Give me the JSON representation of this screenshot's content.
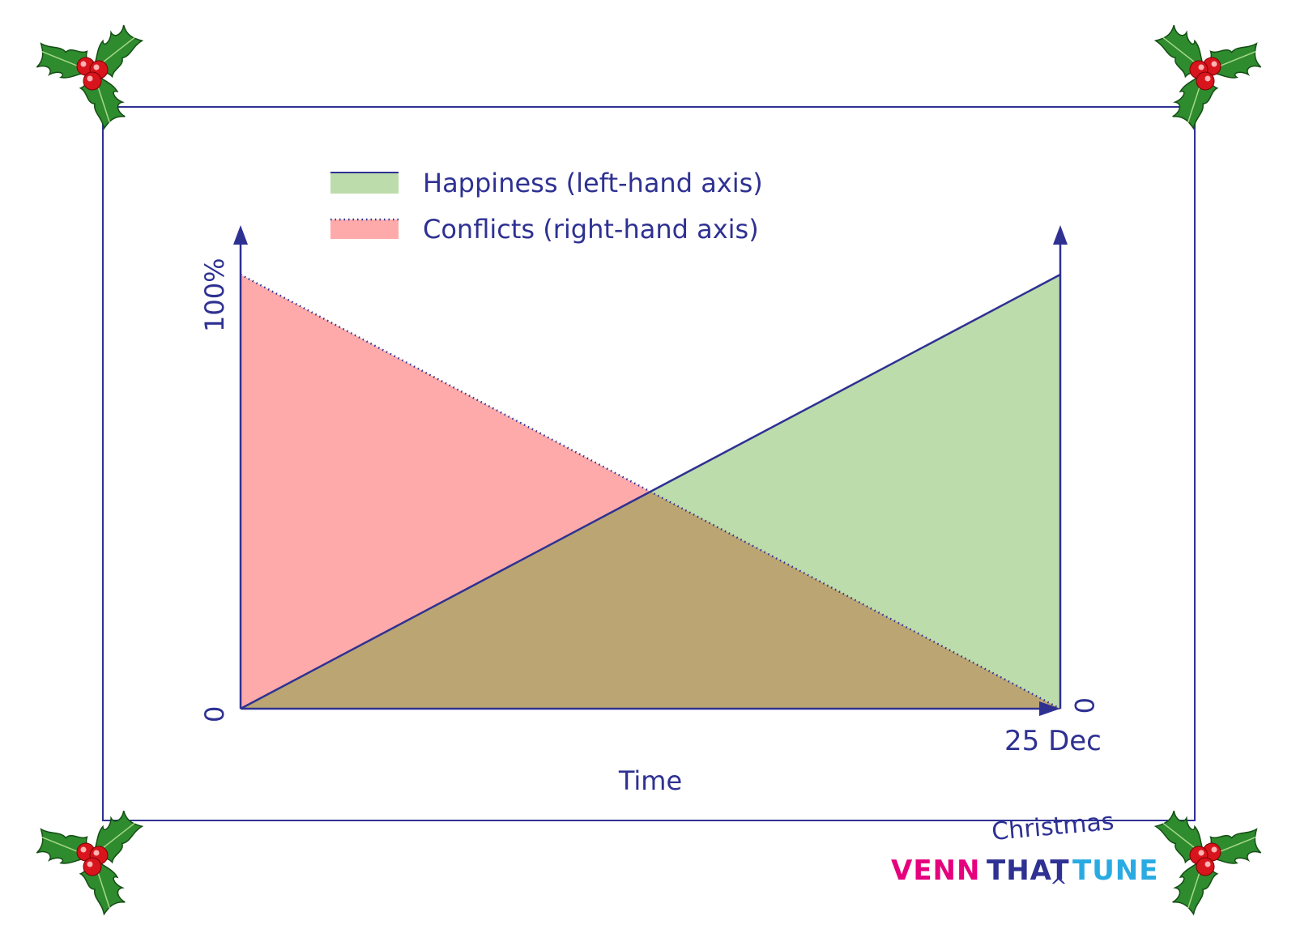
{
  "chart_data": {
    "type": "area",
    "x_label": "Time",
    "x_end_label": "25 Dec",
    "left_axis": {
      "top_label": "100%",
      "zero_label": "0"
    },
    "right_axis": {
      "zero_label": "0"
    },
    "x": [
      0,
      1
    ],
    "ylim": [
      0,
      100
    ],
    "grid": false,
    "legend_placement": "top-left",
    "series": [
      {
        "name": "Happiness (left-hand axis)",
        "values": [
          0,
          100
        ],
        "fill": "#bddcab",
        "line": "#2e3192",
        "line_style": "solid"
      },
      {
        "name": "Conflicts (right-hand axis)",
        "values": [
          100,
          0
        ],
        "fill": "#ffaaaa",
        "line": "#2e3192",
        "line_style": "dotted"
      }
    ],
    "overlap_fill": "#bba573",
    "axis_color": "#2e3192"
  },
  "brand": {
    "venn": "VENN",
    "that": "THAT",
    "tune": "TUNE",
    "christmas": "Christmas",
    "caret": "^",
    "colors": {
      "venn": "#e6007e",
      "that": "#2e3192",
      "tune": "#29abe2",
      "christmas": "#2e3192"
    }
  },
  "decor": {
    "corner_icon": "holly-icon"
  }
}
